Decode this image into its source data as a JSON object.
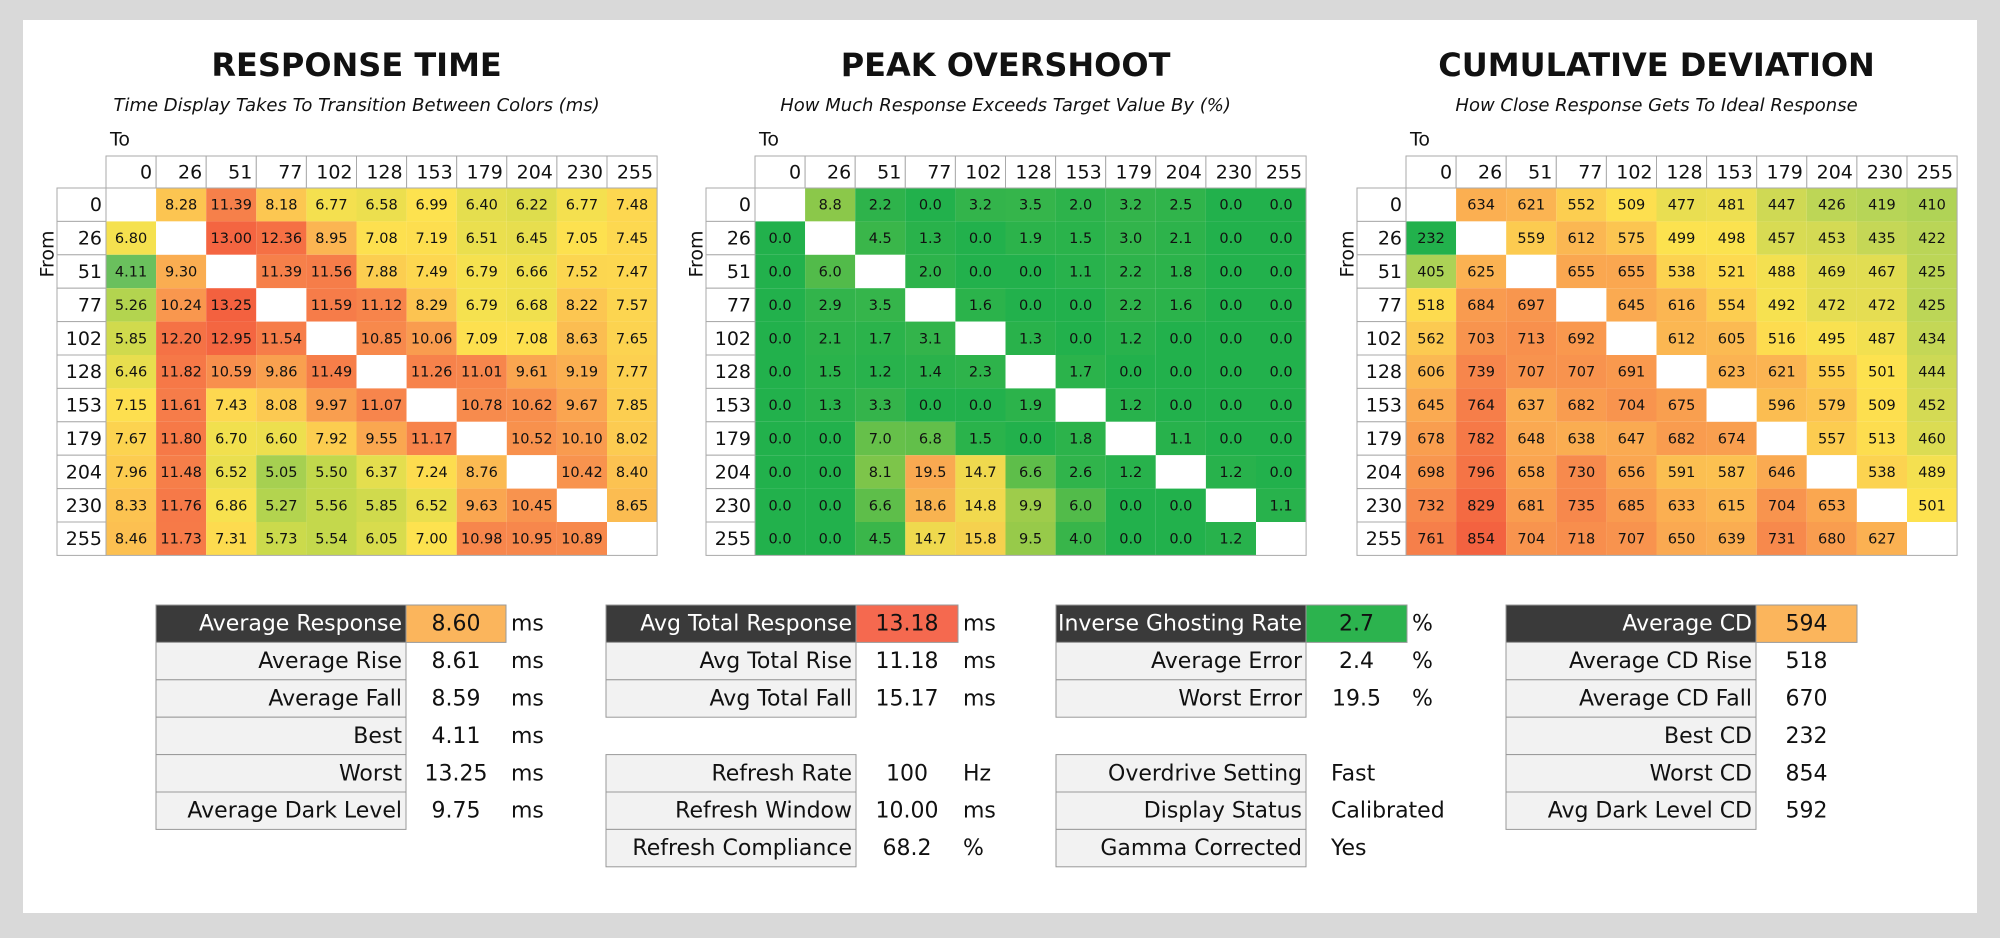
{
  "heatmaps": [
    {
      "title": "RESPONSE TIME",
      "subtitle": "Time Display Takes To Transition Between Colors (ms)",
      "to_label": "To",
      "from_label": "From",
      "levels": [
        "0",
        "26",
        "51",
        "77",
        "102",
        "128",
        "153",
        "179",
        "204",
        "230",
        "255"
      ],
      "rows": [
        [
          null,
          "8.28",
          "11.39",
          "8.18",
          "6.77",
          "6.58",
          "6.99",
          "6.40",
          "6.22",
          "6.77",
          "7.48"
        ],
        [
          "6.80",
          null,
          "13.00",
          "12.36",
          "8.95",
          "7.08",
          "7.19",
          "6.51",
          "6.45",
          "7.05",
          "7.45"
        ],
        [
          "4.11",
          "9.30",
          null,
          "11.39",
          "11.56",
          "7.88",
          "7.49",
          "6.79",
          "6.66",
          "7.52",
          "7.47"
        ],
        [
          "5.26",
          "10.24",
          "13.25",
          null,
          "11.59",
          "11.12",
          "8.29",
          "6.79",
          "6.68",
          "8.22",
          "7.57"
        ],
        [
          "5.85",
          "12.20",
          "12.95",
          "11.54",
          null,
          "10.85",
          "10.06",
          "7.09",
          "7.08",
          "8.63",
          "7.65"
        ],
        [
          "6.46",
          "11.82",
          "10.59",
          "9.86",
          "11.49",
          null,
          "11.26",
          "11.01",
          "9.61",
          "9.19",
          "7.77"
        ],
        [
          "7.15",
          "11.61",
          "7.43",
          "8.08",
          "9.97",
          "11.07",
          null,
          "10.78",
          "10.62",
          "9.67",
          "7.85"
        ],
        [
          "7.67",
          "11.80",
          "6.70",
          "6.60",
          "7.92",
          "9.55",
          "11.17",
          null,
          "10.52",
          "10.10",
          "8.02"
        ],
        [
          "7.96",
          "11.48",
          "6.52",
          "5.05",
          "5.50",
          "6.37",
          "7.24",
          "8.76",
          null,
          "10.42",
          "8.40"
        ],
        [
          "8.33",
          "11.76",
          "6.86",
          "5.27",
          "5.56",
          "5.85",
          "6.52",
          "9.63",
          "10.45",
          null,
          "8.65"
        ],
        [
          "8.46",
          "11.73",
          "7.31",
          "5.73",
          "5.54",
          "6.05",
          "7.00",
          "10.98",
          "10.95",
          "10.89",
          null
        ]
      ]
    },
    {
      "title": "PEAK OVERSHOOT",
      "subtitle": "How Much Response Exceeds Target Value By (%)",
      "to_label": "To",
      "from_label": "From",
      "levels": [
        "0",
        "26",
        "51",
        "77",
        "102",
        "128",
        "153",
        "179",
        "204",
        "230",
        "255"
      ],
      "rows": [
        [
          null,
          "8.8",
          "2.2",
          "0.0",
          "3.2",
          "3.5",
          "2.0",
          "3.2",
          "2.5",
          "0.0",
          "0.0"
        ],
        [
          "0.0",
          null,
          "4.5",
          "1.3",
          "0.0",
          "1.9",
          "1.5",
          "3.0",
          "2.1",
          "0.0",
          "0.0"
        ],
        [
          "0.0",
          "6.0",
          null,
          "2.0",
          "0.0",
          "0.0",
          "1.1",
          "2.2",
          "1.8",
          "0.0",
          "0.0"
        ],
        [
          "0.0",
          "2.9",
          "3.5",
          null,
          "1.6",
          "0.0",
          "0.0",
          "2.2",
          "1.6",
          "0.0",
          "0.0"
        ],
        [
          "0.0",
          "2.1",
          "1.7",
          "3.1",
          null,
          "1.3",
          "0.0",
          "1.2",
          "0.0",
          "0.0",
          "0.0"
        ],
        [
          "0.0",
          "1.5",
          "1.2",
          "1.4",
          "2.3",
          null,
          "1.7",
          "0.0",
          "0.0",
          "0.0",
          "0.0"
        ],
        [
          "0.0",
          "1.3",
          "3.3",
          "0.0",
          "0.0",
          "1.9",
          null,
          "1.2",
          "0.0",
          "0.0",
          "0.0"
        ],
        [
          "0.0",
          "0.0",
          "7.0",
          "6.8",
          "1.5",
          "0.0",
          "1.8",
          null,
          "1.1",
          "0.0",
          "0.0"
        ],
        [
          "0.0",
          "0.0",
          "8.1",
          "19.5",
          "14.7",
          "6.6",
          "2.6",
          "1.2",
          null,
          "1.2",
          "0.0"
        ],
        [
          "0.0",
          "0.0",
          "6.6",
          "18.6",
          "14.8",
          "9.9",
          "6.0",
          "0.0",
          "0.0",
          null,
          "1.1"
        ],
        [
          "0.0",
          "0.0",
          "4.5",
          "14.7",
          "15.8",
          "9.5",
          "4.0",
          "0.0",
          "0.0",
          "1.2",
          null
        ]
      ]
    },
    {
      "title": "CUMULATIVE DEVIATION",
      "subtitle": "How Close Response Gets To Ideal Response",
      "to_label": "To",
      "from_label": "From",
      "levels": [
        "0",
        "26",
        "51",
        "77",
        "102",
        "128",
        "153",
        "179",
        "204",
        "230",
        "255"
      ],
      "rows": [
        [
          null,
          "634",
          "621",
          "552",
          "509",
          "477",
          "481",
          "447",
          "426",
          "419",
          "410"
        ],
        [
          "232",
          null,
          "559",
          "612",
          "575",
          "499",
          "498",
          "457",
          "453",
          "435",
          "422"
        ],
        [
          "405",
          "625",
          null,
          "655",
          "655",
          "538",
          "521",
          "488",
          "469",
          "467",
          "425"
        ],
        [
          "518",
          "684",
          "697",
          null,
          "645",
          "616",
          "554",
          "492",
          "472",
          "472",
          "425"
        ],
        [
          "562",
          "703",
          "713",
          "692",
          null,
          "612",
          "605",
          "516",
          "495",
          "487",
          "434"
        ],
        [
          "606",
          "739",
          "707",
          "707",
          "691",
          null,
          "623",
          "621",
          "555",
          "501",
          "444"
        ],
        [
          "645",
          "764",
          "637",
          "682",
          "704",
          "675",
          null,
          "596",
          "579",
          "509",
          "452"
        ],
        [
          "678",
          "782",
          "648",
          "638",
          "647",
          "682",
          "674",
          null,
          "557",
          "513",
          "460"
        ],
        [
          "698",
          "796",
          "658",
          "730",
          "656",
          "591",
          "587",
          "646",
          null,
          "538",
          "489"
        ],
        [
          "732",
          "829",
          "681",
          "735",
          "685",
          "633",
          "615",
          "704",
          "653",
          null,
          "501"
        ],
        [
          "761",
          "854",
          "704",
          "718",
          "707",
          "650",
          "639",
          "731",
          "680",
          "627",
          null
        ]
      ]
    }
  ],
  "stats": [
    {
      "sections": [
        [
          {
            "label": "Average Response",
            "value": "8.60",
            "unit": "ms",
            "color": "#fbb55c"
          },
          {
            "label": "Average Rise",
            "value": "8.61",
            "unit": "ms"
          },
          {
            "label": "Average Fall",
            "value": "8.59",
            "unit": "ms"
          },
          {
            "label": "Best",
            "value": "4.11",
            "unit": "ms"
          },
          {
            "label": "Worst",
            "value": "13.25",
            "unit": "ms"
          },
          {
            "label": "Average Dark Level",
            "value": "9.75",
            "unit": "ms"
          }
        ]
      ]
    },
    {
      "sections": [
        [
          {
            "label": "Avg Total Response",
            "value": "13.18",
            "unit": "ms",
            "color": "#f5694f"
          },
          {
            "label": "Avg Total Rise",
            "value": "11.18",
            "unit": "ms"
          },
          {
            "label": "Avg Total Fall",
            "value": "15.17",
            "unit": "ms"
          }
        ],
        [
          {
            "label": "Refresh Rate",
            "value": "100",
            "unit": "Hz"
          },
          {
            "label": "Refresh Window",
            "value": "10.00",
            "unit": "ms"
          },
          {
            "label": "Refresh Compliance",
            "value": "68.2",
            "unit": "%"
          }
        ]
      ]
    },
    {
      "sections": [
        [
          {
            "label": "Inverse Ghosting Rate",
            "value": "2.7",
            "unit": "%",
            "color": "#2cb34e"
          },
          {
            "label": "Average Error",
            "value": "2.4",
            "unit": "%"
          },
          {
            "label": "Worst Error",
            "value": "19.5",
            "unit": "%"
          }
        ],
        [
          {
            "label": "Overdrive Setting",
            "value": "Fast"
          },
          {
            "label": "Display Status",
            "value": "Calibrated"
          },
          {
            "label": "Gamma Corrected",
            "value": "Yes"
          }
        ]
      ]
    },
    {
      "sections": [
        [
          {
            "label": "Average CD",
            "value": "594",
            "color": "#fbb55c"
          },
          {
            "label": "Average CD Rise",
            "value": "518"
          },
          {
            "label": "Average CD Fall",
            "value": "670"
          },
          {
            "label": "Best CD",
            "value": "232"
          },
          {
            "label": "Worst CD",
            "value": "854"
          },
          {
            "label": "Avg Dark Level CD",
            "value": "592"
          }
        ]
      ]
    }
  ]
}
